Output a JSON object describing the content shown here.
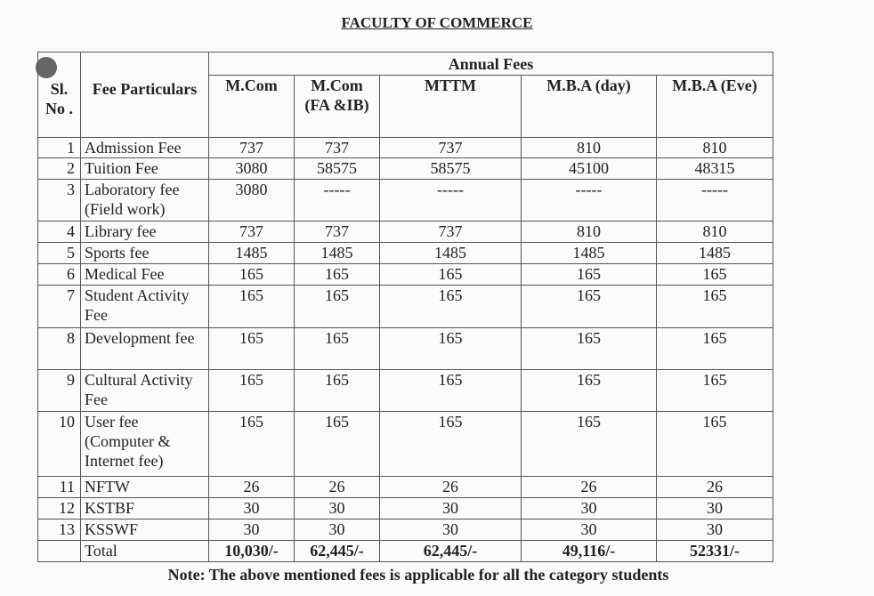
{
  "title": "FACULTY OF COMMERCE",
  "headers": {
    "sl_no": "Sl. No .",
    "fee_particulars": "Fee Particulars",
    "annual_fees": "Annual Fees",
    "programs": [
      "M.Com",
      "M.Com (FA &IB)",
      "MTTM",
      "M.B.A (day)",
      "M.B.A (Eve)"
    ]
  },
  "rows": [
    {
      "sl": "1",
      "name": "Admission Fee",
      "values": [
        "737",
        "737",
        "737",
        "810",
        "810"
      ]
    },
    {
      "sl": "2",
      "name": "Tuition Fee",
      "values": [
        "3080",
        "58575",
        "58575",
        "45100",
        "48315"
      ]
    },
    {
      "sl": "3",
      "name": "Laboratory fee (Field work)",
      "values": [
        "3080",
        "-----",
        "-----",
        "-----",
        "-----"
      ]
    },
    {
      "sl": "4",
      "name": "Library fee",
      "values": [
        "737",
        "737",
        "737",
        "810",
        "810"
      ]
    },
    {
      "sl": "5",
      "name": "Sports fee",
      "values": [
        "1485",
        "1485",
        "1485",
        "1485",
        "1485"
      ]
    },
    {
      "sl": "6",
      "name": "Medical Fee",
      "values": [
        "165",
        "165",
        "165",
        "165",
        "165"
      ]
    },
    {
      "sl": "7",
      "name": "Student Activity Fee",
      "values": [
        "165",
        "165",
        "165",
        "165",
        "165"
      ]
    },
    {
      "sl": "8",
      "name": "Development fee",
      "values": [
        "165",
        "165",
        "165",
        "165",
        "165"
      ]
    },
    {
      "sl": "9",
      "name": "Cultural Activity Fee",
      "values": [
        "165",
        "165",
        "165",
        "165",
        "165"
      ]
    },
    {
      "sl": "10",
      "name": "User fee (Computer & Internet fee)",
      "values": [
        "165",
        "165",
        "165",
        "165",
        "165"
      ]
    },
    {
      "sl": "11",
      "name": "NFTW",
      "values": [
        "26",
        "26",
        "26",
        "26",
        "26"
      ]
    },
    {
      "sl": "12",
      "name": "KSTBF",
      "values": [
        "30",
        "30",
        "30",
        "30",
        "30"
      ]
    },
    {
      "sl": "13",
      "name": "KSSWF",
      "values": [
        "30",
        "30",
        "30",
        "30",
        "30"
      ]
    }
  ],
  "total": {
    "label": "Total",
    "values": [
      "10,030/-",
      "62,445/-",
      "62,445/-",
      "49,116/-",
      "52331/-"
    ]
  },
  "note": "Note: The above mentioned fees is applicable for all the category students"
}
